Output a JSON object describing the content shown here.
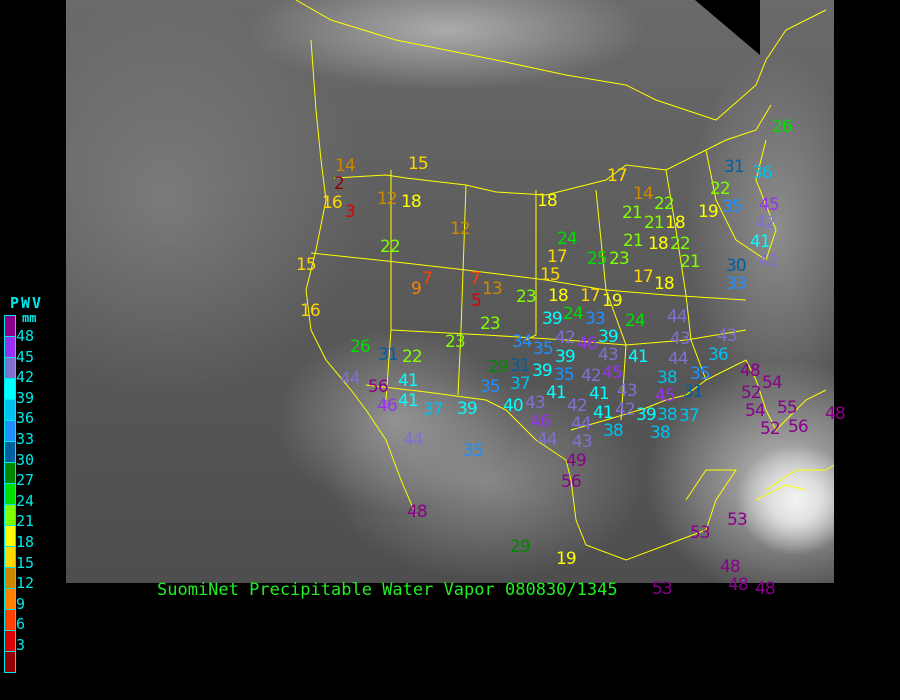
{
  "title": "SuomiNet Precipitable Water Vapor 080830/1345",
  "legend": {
    "title": "PWV",
    "unit": "mm",
    "ticks": [
      "48",
      "45",
      "42",
      "39",
      "36",
      "33",
      "30",
      "27",
      "24",
      "21",
      "18",
      "15",
      "12",
      "9",
      "6",
      "3"
    ],
    "colors": [
      "#8b008b",
      "#9932ee",
      "#8070d0",
      "#00ffff",
      "#00c0f0",
      "#1e90ff",
      "#005f9f",
      "#008800",
      "#00dd00",
      "#80ff00",
      "#ffff00",
      "#ffd700",
      "#cc8800",
      "#ff8000",
      "#ff4000",
      "#dd0000",
      "#900000"
    ]
  },
  "overlay_colors": {
    "borders": "#ffff00",
    "title": "#22ee22"
  },
  "stations": [
    "26",
    "15",
    "17",
    "31",
    "36",
    "14",
    "2",
    "16",
    "3",
    "12",
    "18",
    "12",
    "18",
    "22",
    "35",
    "14",
    "22",
    "21",
    "21",
    "18",
    "19",
    "45",
    "42",
    "22",
    "24",
    "17",
    "21",
    "18",
    "22",
    "41",
    "15",
    "15",
    "25",
    "23",
    "21",
    "30",
    "42",
    "33",
    "17",
    "18",
    "7",
    "9",
    "7",
    "13",
    "5",
    "23",
    "18",
    "17",
    "19",
    "16",
    "23",
    "24",
    "39",
    "33",
    "24",
    "44",
    "42",
    "46",
    "39",
    "43",
    "43",
    "43",
    "26",
    "31",
    "22",
    "23",
    "34",
    "35",
    "39",
    "41",
    "44",
    "36",
    "29",
    "31",
    "39",
    "35",
    "41",
    "42",
    "45",
    "38",
    "35",
    "48",
    "54",
    "44",
    "56",
    "41",
    "43",
    "45",
    "31",
    "52",
    "35",
    "37",
    "43",
    "46",
    "41",
    "37",
    "39",
    "40",
    "46",
    "42",
    "41",
    "41",
    "42",
    "39",
    "38",
    "38",
    "37",
    "44",
    "38",
    "54",
    "55",
    "52",
    "56",
    "48",
    "44",
    "35",
    "44",
    "43",
    "49",
    "56",
    "48",
    "53",
    "53",
    "29",
    "48",
    "48",
    "53",
    "48",
    "19"
  ]
}
